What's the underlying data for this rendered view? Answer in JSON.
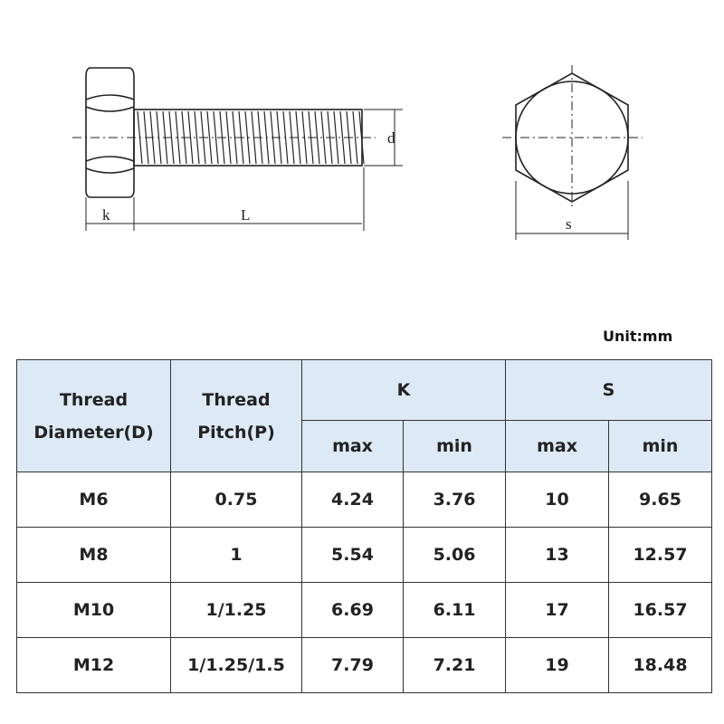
{
  "diagram": {
    "labels": {
      "k": "k",
      "L": "L",
      "d": "d",
      "s": "s"
    }
  },
  "unit": "Unit:mm",
  "table": {
    "headers": {
      "diameter": [
        "Thread",
        "Diameter(D)"
      ],
      "pitch": [
        "Thread",
        "Pitch(P)"
      ],
      "k": "K",
      "s": "S",
      "k_max": "max",
      "k_min": "min",
      "s_max": "max",
      "s_min": "min"
    },
    "rows": [
      [
        "M6",
        "0.75",
        "4.24",
        "3.76",
        "10",
        "9.65"
      ],
      [
        "M8",
        "1",
        "5.54",
        "5.06",
        "13",
        "12.57"
      ],
      [
        "M10",
        "1/1.25",
        "6.69",
        "6.11",
        "17",
        "16.57"
      ],
      [
        "M12",
        "1/1.25/1.5",
        "7.79",
        "7.21",
        "19",
        "18.48"
      ]
    ]
  }
}
